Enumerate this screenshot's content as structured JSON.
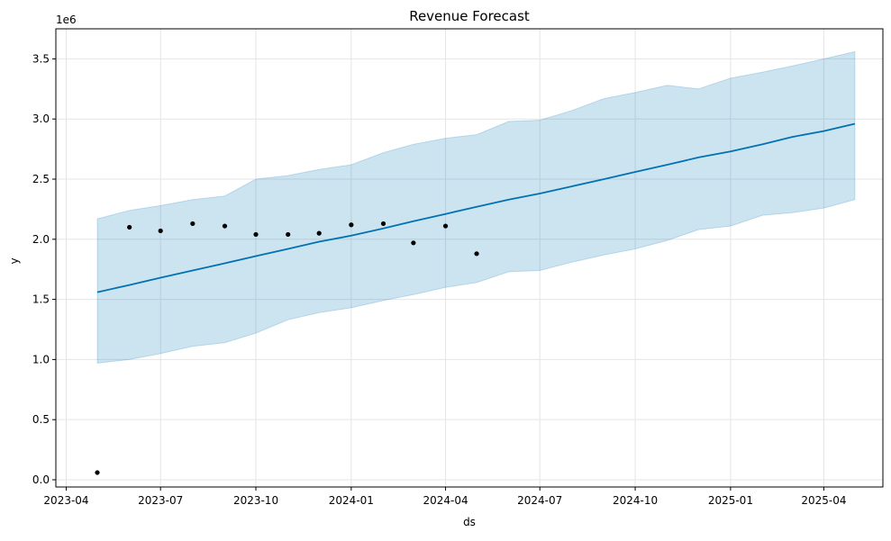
{
  "chart_data": {
    "type": "line",
    "title": "Revenue Forecast",
    "xlabel": "ds",
    "ylabel": "y",
    "y_scale_note": "1e6",
    "grid": true,
    "x_ticks": [
      "2023-04",
      "2023-07",
      "2023-10",
      "2024-01",
      "2024-04",
      "2024-07",
      "2024-10",
      "2025-01",
      "2025-04"
    ],
    "y_ticks": [
      "0.0",
      "0.5",
      "1.0",
      "1.5",
      "2.0",
      "2.5",
      "3.0",
      "3.5"
    ],
    "xlim": [
      "2023-03-22",
      "2025-05-28"
    ],
    "ylim": [
      -0.06,
      3.75
    ],
    "colors": {
      "forecast_line": "#0072B2",
      "interval_fill": "#0072B2",
      "actual_points": "#000000",
      "grid": "#e5e5e5"
    },
    "series": [
      {
        "kind": "forecast",
        "x": [
          "2023-05-01",
          "2023-06-01",
          "2023-07-01",
          "2023-08-01",
          "2023-09-01",
          "2023-10-01",
          "2023-11-01",
          "2023-12-01",
          "2024-01-01",
          "2024-02-01",
          "2024-03-01",
          "2024-04-01",
          "2024-05-01",
          "2024-06-01",
          "2024-07-01",
          "2024-08-01",
          "2024-09-01",
          "2024-10-01",
          "2024-11-01",
          "2024-12-01",
          "2025-01-01",
          "2025-02-01",
          "2025-03-01",
          "2025-04-01",
          "2025-05-01"
        ],
        "yhat": [
          1.56,
          1.62,
          1.68,
          1.74,
          1.8,
          1.86,
          1.92,
          1.98,
          2.03,
          2.09,
          2.15,
          2.21,
          2.27,
          2.33,
          2.38,
          2.44,
          2.5,
          2.56,
          2.62,
          2.68,
          2.73,
          2.79,
          2.85,
          2.9,
          2.96
        ],
        "lower": [
          0.97,
          1.0,
          1.05,
          1.11,
          1.14,
          1.22,
          1.33,
          1.39,
          1.43,
          1.49,
          1.54,
          1.6,
          1.64,
          1.73,
          1.74,
          1.81,
          1.87,
          1.92,
          1.99,
          2.08,
          2.11,
          2.2,
          2.22,
          2.26,
          2.33
        ],
        "upper": [
          2.17,
          2.24,
          2.28,
          2.33,
          2.36,
          2.5,
          2.53,
          2.58,
          2.62,
          2.72,
          2.79,
          2.84,
          2.87,
          2.98,
          2.99,
          3.07,
          3.17,
          3.22,
          3.28,
          3.25,
          3.34,
          3.39,
          3.44,
          3.5,
          3.56
        ]
      },
      {
        "kind": "actual",
        "x": [
          "2023-05-01",
          "2023-06-01",
          "2023-07-01",
          "2023-08-01",
          "2023-09-01",
          "2023-10-01",
          "2023-11-01",
          "2023-12-01",
          "2024-01-01",
          "2024-02-01",
          "2024-03-01",
          "2024-04-01",
          "2024-05-01"
        ],
        "y": [
          0.06,
          2.1,
          2.07,
          2.13,
          2.11,
          2.04,
          2.04,
          2.05,
          2.12,
          2.13,
          1.97,
          2.11,
          1.88
        ]
      }
    ]
  }
}
